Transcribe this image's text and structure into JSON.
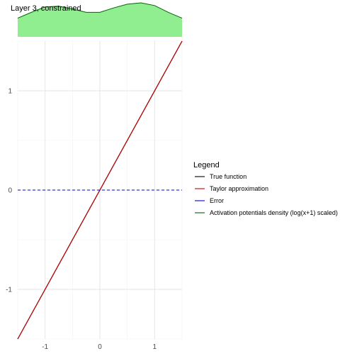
{
  "chart_data": [
    {
      "type": "area",
      "title": "Layer 3, constrained",
      "x": [
        -1.5,
        -1.25,
        -1.0,
        -0.75,
        -0.5,
        -0.25,
        0.0,
        0.25,
        0.5,
        0.75,
        1.0,
        1.25,
        1.5
      ],
      "values": [
        0.55,
        0.72,
        0.88,
        0.9,
        0.82,
        0.72,
        0.72,
        0.85,
        0.96,
        1.0,
        0.92,
        0.72,
        0.55
      ],
      "fill_color": "#90ee90",
      "line_color": "#006400"
    },
    {
      "type": "line",
      "xlim": [
        -1.5,
        1.5
      ],
      "ylim": [
        -1.5,
        1.5
      ],
      "x_ticks": [
        -1,
        0,
        1
      ],
      "y_ticks": [
        -1,
        0,
        1
      ],
      "x_tick_labels": [
        "-1",
        "0",
        "1"
      ],
      "y_tick_labels": [
        "-1",
        "0",
        "1"
      ],
      "grid": true,
      "legend_position": "right",
      "legend_title": "Legend",
      "series": [
        {
          "name": "True function",
          "color": "#000000",
          "style": "solid",
          "x": [
            -1.5,
            1.5
          ],
          "y": [
            -1.5,
            1.5
          ]
        },
        {
          "name": "Taylor approximation",
          "color": "#cc0000",
          "style": "solid",
          "x": [
            -1.5,
            1.5
          ],
          "y": [
            -1.5,
            1.5
          ]
        },
        {
          "name": "Error",
          "color": "#0000cc",
          "style": "dashed",
          "x": [
            -1.5,
            1.5
          ],
          "y": [
            0,
            0
          ]
        },
        {
          "name": "Activation potentials density (log(x+1) scaled)",
          "color": "#006400",
          "style": "solid",
          "x": [],
          "y": []
        }
      ]
    }
  ]
}
